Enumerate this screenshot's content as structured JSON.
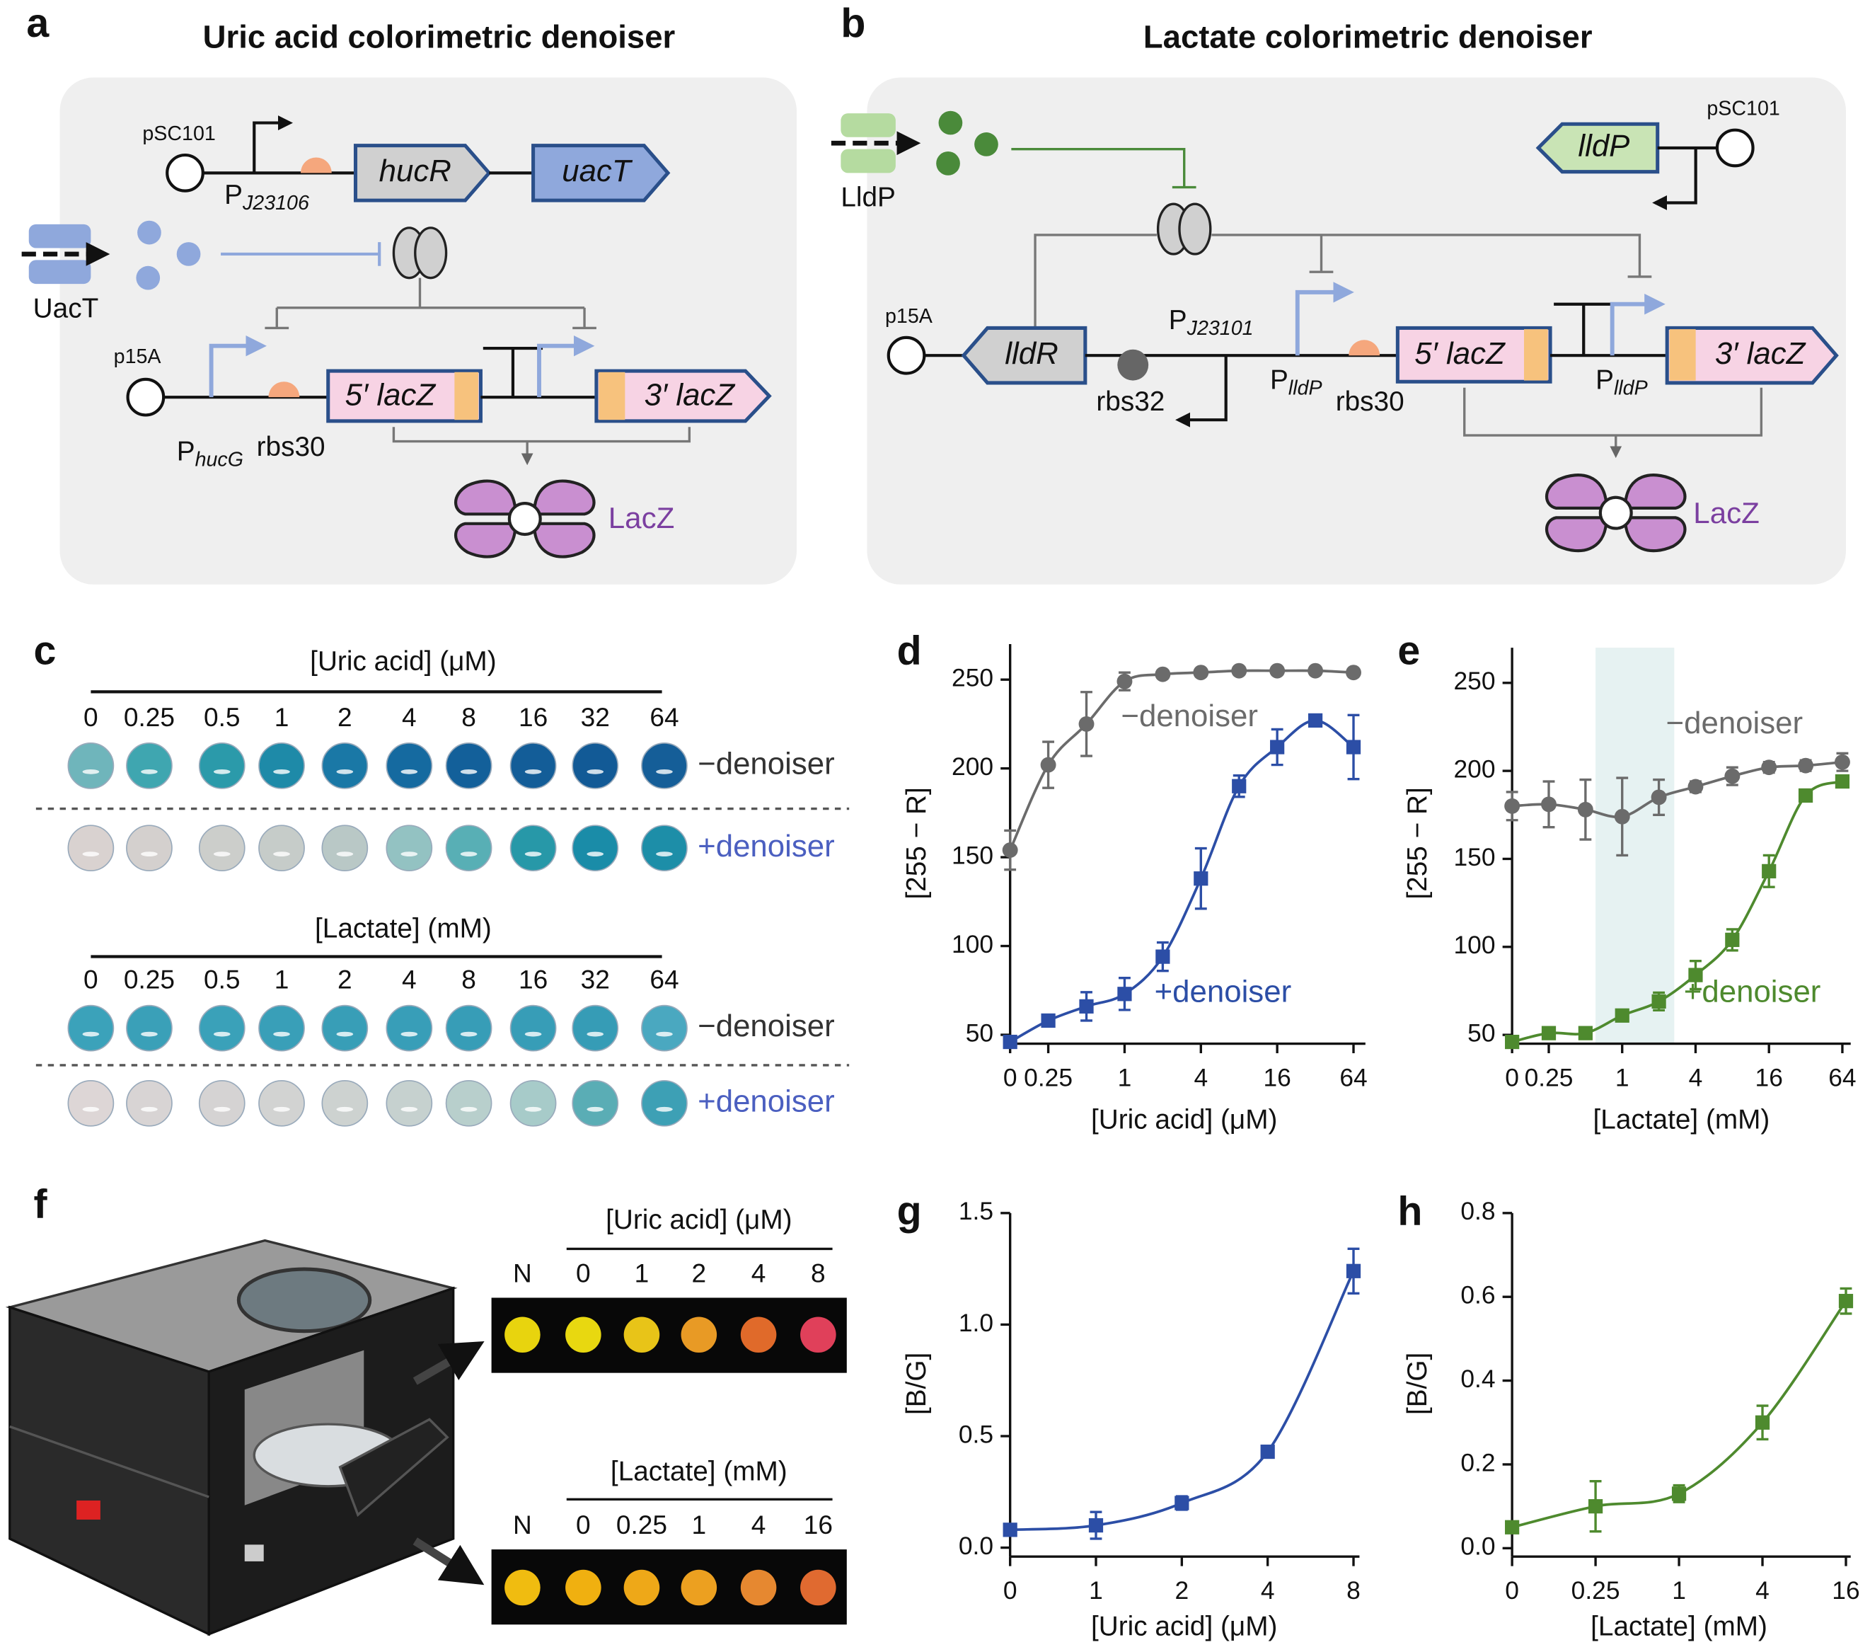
{
  "panel_labels": [
    "a",
    "b",
    "c",
    "d",
    "e",
    "f",
    "g",
    "h"
  ],
  "panel_a": {
    "title": "Uric acid colorimetric denoiser",
    "plasmid_1": "pSC101",
    "promoter_1": {
      "main": "P",
      "sub": "J23106"
    },
    "gene_1": "hucR",
    "gene_2": "uacT",
    "transporter": "UacT",
    "plasmid_2": "p15A",
    "promoter_2": {
      "main": "P",
      "sub": "hucG"
    },
    "rbs": "rbs30",
    "gene_3": "5′ lacZ",
    "gene_4": "3′ lacZ",
    "protein": "LacZ"
  },
  "panel_b": {
    "title": "Lactate colorimetric denoiser",
    "transporter": "LldP",
    "gene_1": "lldP",
    "plasmid_1": "pSC101",
    "plasmid_2": "p15A",
    "gene_2": "lldR",
    "rbs_1": "rbs32",
    "promoter_1": {
      "main": "P",
      "sub": "J23101"
    },
    "promoter_2": {
      "main": "P",
      "sub": "lldP"
    },
    "rbs_2": "rbs30",
    "gene_3": "5′ lacZ",
    "promoter_3": {
      "main": "P",
      "sub": "lldP"
    },
    "gene_4": "3′ lacZ",
    "protein": "LacZ"
  },
  "panel_c": {
    "assays": [
      {
        "title": "[Uric acid] (μM)",
        "concentrations": [
          "0",
          "0.25",
          "0.5",
          "1",
          "2",
          "4",
          "8",
          "16",
          "32",
          "64"
        ],
        "rows": [
          {
            "label": "−denoiser",
            "colors": [
              "#6fb5bb",
              "#3fa6b0",
              "#2b9aaa",
              "#1e8aa8",
              "#1a78a6",
              "#156aa0",
              "#13609a",
              "#135d98",
              "#125a96",
              "#155e98"
            ]
          },
          {
            "label": "+denoiser",
            "colors": [
              "#d9d2d0",
              "#d4d0ce",
              "#cccecb",
              "#c6ccc9",
              "#b9c8c6",
              "#93c2c2",
              "#58afb5",
              "#2798a8",
              "#1a8ca8",
              "#1d8ea8"
            ]
          }
        ]
      },
      {
        "title": "[Lactate] (mM)",
        "concentrations": [
          "0",
          "0.25",
          "0.5",
          "1",
          "2",
          "4",
          "8",
          "16",
          "32",
          "64"
        ],
        "rows": [
          {
            "label": "−denoiser",
            "colors": [
              "#3ba2ba",
              "#3aa0b8",
              "#3aa1b9",
              "#399fb8",
              "#389eb7",
              "#389eb8",
              "#379db7",
              "#379db7",
              "#369cb6",
              "#4aa8c0"
            ]
          },
          {
            "label": "+denoiser",
            "colors": [
              "#ddd6d6",
              "#d8d4d4",
              "#d5d3d3",
              "#d2d3d2",
              "#cdd2d0",
              "#c6d1cf",
              "#b8cfcc",
              "#a7cbc9",
              "#5aadb5",
              "#3da0b5"
            ]
          }
        ]
      }
    ]
  },
  "panel_f": {
    "assays": [
      {
        "title": "[Uric acid] (μM)",
        "wells": [
          "N",
          "0",
          "1",
          "2",
          "4",
          "8"
        ],
        "colors": [
          "#e8d40e",
          "#e8d810",
          "#e8c418",
          "#e89a25",
          "#e06a2a",
          "#e0405a"
        ]
      },
      {
        "title": "[Lactate] (mM)",
        "wells": [
          "N",
          "0",
          "0.25",
          "1",
          "4",
          "16"
        ],
        "colors": [
          "#f0bc10",
          "#f0b010",
          "#eea818",
          "#eca020",
          "#e68830",
          "#e06a30"
        ]
      }
    ]
  },
  "chart_data": [
    {
      "type": "line",
      "x_label": "[Uric acid] (μM)",
      "y_label": "[255 − R]",
      "categories": [
        "0",
        "0.25",
        null,
        "1",
        null,
        "4",
        null,
        "16",
        null,
        "64"
      ],
      "ylim": [
        45,
        270
      ],
      "yticks": [
        50,
        100,
        150,
        200,
        250
      ],
      "series": [
        {
          "name": "−denoiser",
          "color": "#6b6b6b",
          "marker": "circle",
          "values": [
            154,
            202,
            225,
            249,
            253,
            254,
            255,
            255,
            255,
            254
          ],
          "errors": [
            11,
            13,
            18,
            5,
            2,
            1,
            1,
            1,
            1,
            1
          ]
        },
        {
          "name": "+denoiser",
          "color": "#2c4ea6",
          "marker": "square",
          "values": [
            46,
            58,
            66,
            73,
            94,
            138,
            190,
            212,
            227,
            212
          ],
          "errors": [
            1,
            3,
            8,
            9,
            8,
            17,
            6,
            10,
            2,
            18
          ]
        }
      ]
    },
    {
      "type": "line",
      "x_label": "[Lactate] (mM)",
      "y_label": "[255 − R]",
      "categories": [
        "0",
        "0.25",
        null,
        "1",
        null,
        "4",
        null,
        "16",
        null,
        "64"
      ],
      "ylim": [
        45,
        270
      ],
      "yticks": [
        50,
        100,
        150,
        200,
        250
      ],
      "series": [
        {
          "name": "−denoiser",
          "color": "#6b6b6b",
          "marker": "circle",
          "values": [
            180,
            181,
            178,
            174,
            185,
            191,
            197,
            202,
            203,
            205
          ],
          "errors": [
            8,
            13,
            17,
            22,
            10,
            3,
            5,
            3,
            3,
            5
          ]
        },
        {
          "name": "+denoiser",
          "color": "#4e8a2e",
          "marker": "square",
          "values": [
            46,
            51,
            51,
            61,
            69,
            84,
            104,
            143,
            186,
            194
          ],
          "errors": [
            3,
            2,
            2,
            2,
            5,
            8,
            6,
            9,
            2,
            3
          ]
        }
      ]
    },
    {
      "type": "line",
      "x_label": "[Uric acid] (μM)",
      "y_label": "[B/G]",
      "categories": [
        "0",
        "1",
        "2",
        "4",
        "8"
      ],
      "ylim": [
        -0.04,
        1.5
      ],
      "yticks": [
        {
          "value": 0,
          "label": "0.0"
        },
        0.5,
        {
          "value": 1,
          "label": "1.0"
        },
        1.5
      ],
      "series": [
        {
          "color": "#2c4ea6",
          "marker": "square",
          "values": [
            0.08,
            0.1,
            0.2,
            0.43,
            1.24
          ],
          "errors": [
            0.02,
            0.06,
            0.03,
            0.01,
            0.1
          ]
        }
      ]
    },
    {
      "type": "line",
      "x_label": "[Lactate] (mM)",
      "y_label": "[B/G]",
      "categories": [
        "0",
        "0.25",
        "1",
        "4",
        "16"
      ],
      "ylim": [
        -0.02,
        0.8
      ],
      "yticks": [
        {
          "value": 0,
          "label": "0.0"
        },
        0.2,
        0.4,
        0.6,
        0.8
      ],
      "series": [
        {
          "color": "#4e8a2e",
          "marker": "square",
          "values": [
            0.05,
            0.1,
            0.13,
            0.3,
            0.59
          ],
          "errors": [
            0.01,
            0.06,
            0.02,
            0.04,
            0.03
          ]
        }
      ]
    }
  ]
}
